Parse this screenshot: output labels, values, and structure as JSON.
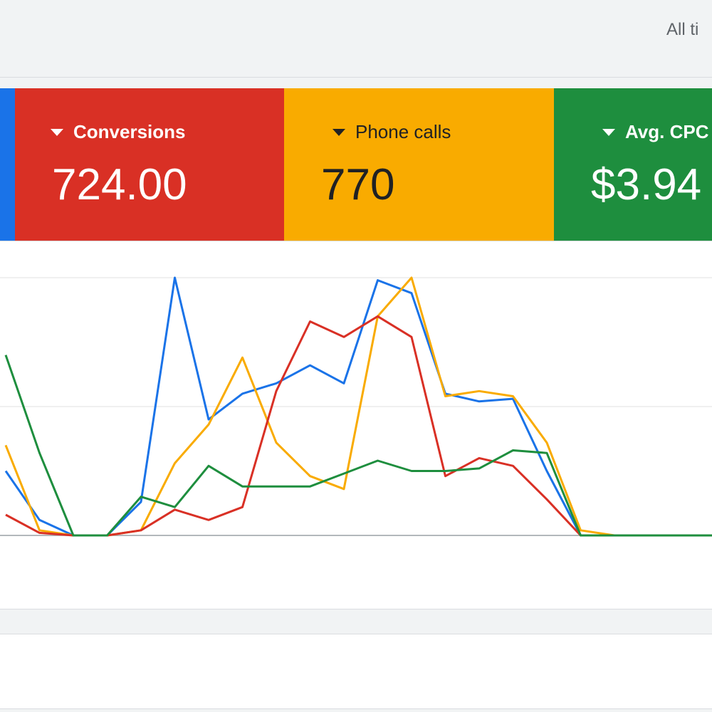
{
  "header": {
    "date_range": "All ti"
  },
  "metrics": [
    {
      "key": "clicks",
      "label": "",
      "value": "",
      "color": "#1a73e8"
    },
    {
      "key": "conversions",
      "label": "Conversions",
      "value": "724.00",
      "color": "#d93025"
    },
    {
      "key": "phone_calls",
      "label": "Phone calls",
      "value": "770",
      "color": "#f9ab00"
    },
    {
      "key": "avg_cpc",
      "label": "Avg. CPC",
      "value": "$3.94",
      "color": "#1e8e3e"
    }
  ],
  "chart_data": {
    "type": "line",
    "x": [
      0,
      1,
      2,
      3,
      4,
      5,
      6,
      7,
      8,
      9,
      10,
      11,
      12,
      13,
      14,
      15,
      16,
      17,
      18,
      19,
      20,
      21
    ],
    "ylim": [
      0,
      100
    ],
    "grid": true,
    "legend": "none",
    "series": [
      {
        "color": "#1a73e8",
        "values": [
          25,
          6,
          0,
          0,
          13,
          100,
          45,
          55,
          59,
          66,
          59,
          99,
          94,
          55,
          52,
          53,
          25,
          0,
          0,
          0,
          0,
          0
        ]
      },
      {
        "color": "#d93025",
        "values": [
          8,
          1,
          0,
          0,
          2,
          10,
          6,
          11,
          56,
          83,
          77,
          85,
          77,
          23,
          30,
          27,
          14,
          0,
          0,
          0,
          0,
          0
        ]
      },
      {
        "color": "#f9ab00",
        "values": [
          35,
          2,
          0,
          0,
          2,
          28,
          43,
          69,
          36,
          23,
          18,
          85,
          100,
          54,
          56,
          54,
          36,
          2,
          0,
          0,
          0,
          0
        ]
      },
      {
        "color": "#1e8e3e",
        "values": [
          70,
          32,
          0,
          0,
          15,
          11,
          27,
          19,
          19,
          19,
          24,
          29,
          25,
          25,
          26,
          33,
          32,
          0,
          0,
          0,
          0,
          0
        ]
      }
    ]
  }
}
